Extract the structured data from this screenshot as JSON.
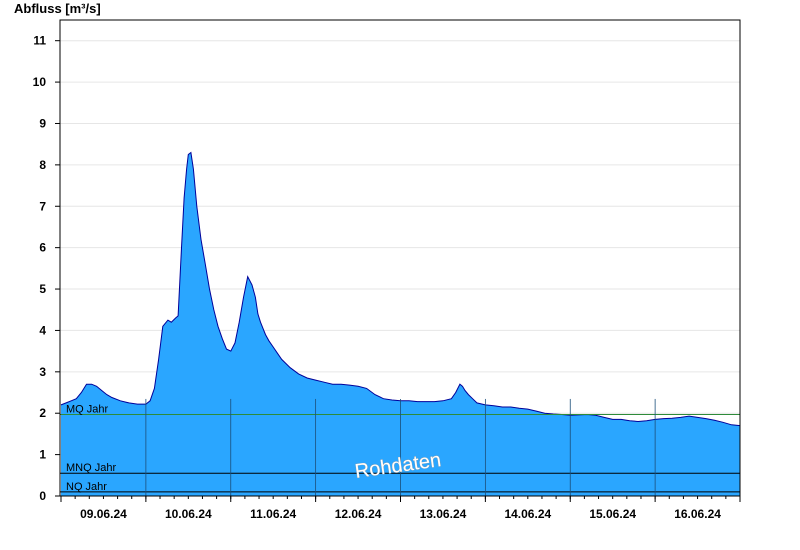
{
  "chart_data": {
    "type": "area",
    "title": "",
    "ylabel": "Abfluss [m³/s]",
    "xlabel": "",
    "ylim": [
      0,
      11.5
    ],
    "yticks": [
      "0",
      "1",
      "2",
      "3",
      "4",
      "5",
      "6",
      "7",
      "8",
      "9",
      "10",
      "11"
    ],
    "xlim": [
      0,
      8
    ],
    "xticks": [
      "09.06.24",
      "10.06.24",
      "11.06.24",
      "12.06.24",
      "13.06.24",
      "14.06.24",
      "15.06.24",
      "16.06.24"
    ],
    "grid": true,
    "colors": {
      "fill": "#2aa6ff",
      "line": "#000099",
      "mq": "#2e8b3a",
      "ref": "#000000"
    },
    "reference_lines": [
      {
        "label": "MQ Jahr",
        "value": 1.97
      },
      {
        "label": "MNQ Jahr",
        "value": 0.55
      },
      {
        "label": "NQ Jahr",
        "value": 0.1
      }
    ],
    "watermark": "Rohdaten",
    "series": [
      {
        "x": [
          0,
          0.06,
          0.12,
          0.18,
          0.24,
          0.3,
          0.36,
          0.42,
          0.48,
          0.54,
          0.6,
          0.7,
          0.8,
          0.9,
          1.0,
          1.05,
          1.1,
          1.15,
          1.2,
          1.26,
          1.3,
          1.35,
          1.38,
          1.42,
          1.45,
          1.48,
          1.5,
          1.53,
          1.56,
          1.6,
          1.65,
          1.7,
          1.75,
          1.8,
          1.85,
          1.9,
          1.95,
          2.0,
          2.05,
          2.1,
          2.15,
          2.2,
          2.25,
          2.29,
          2.32,
          2.35,
          2.38,
          2.41,
          2.45,
          2.5,
          2.55,
          2.6,
          2.7,
          2.8,
          2.9,
          3.0,
          3.1,
          3.2,
          3.3,
          3.4,
          3.5,
          3.6,
          3.7,
          3.8,
          3.9,
          4.0,
          4.1,
          4.2,
          4.3,
          4.4,
          4.5,
          4.6,
          4.65,
          4.7,
          4.73,
          4.76,
          4.8,
          4.85,
          4.9,
          5.0,
          5.1,
          5.2,
          5.3,
          5.4,
          5.5,
          5.6,
          5.7,
          5.8,
          5.9,
          6.0,
          6.1,
          6.2,
          6.3,
          6.4,
          6.5,
          6.6,
          6.7,
          6.8,
          6.9,
          7.0,
          7.1,
          7.2,
          7.3,
          7.4,
          7.5,
          7.6,
          7.7,
          7.8,
          7.9,
          8.0
        ],
        "values": [
          2.2,
          2.25,
          2.3,
          2.35,
          2.5,
          2.7,
          2.7,
          2.65,
          2.55,
          2.45,
          2.38,
          2.3,
          2.25,
          2.22,
          2.22,
          2.3,
          2.6,
          3.3,
          4.1,
          4.25,
          4.2,
          4.3,
          4.35,
          6.0,
          7.2,
          7.9,
          8.25,
          8.3,
          7.9,
          7.0,
          6.2,
          5.6,
          5.0,
          4.5,
          4.1,
          3.8,
          3.55,
          3.5,
          3.7,
          4.2,
          4.8,
          5.3,
          5.1,
          4.8,
          4.4,
          4.2,
          4.05,
          3.9,
          3.75,
          3.6,
          3.45,
          3.3,
          3.1,
          2.95,
          2.85,
          2.8,
          2.75,
          2.7,
          2.7,
          2.68,
          2.65,
          2.6,
          2.45,
          2.35,
          2.32,
          2.3,
          2.3,
          2.28,
          2.28,
          2.28,
          2.3,
          2.35,
          2.5,
          2.7,
          2.65,
          2.55,
          2.45,
          2.35,
          2.25,
          2.2,
          2.18,
          2.15,
          2.15,
          2.12,
          2.1,
          2.05,
          2.0,
          1.98,
          1.97,
          1.95,
          1.96,
          1.97,
          1.95,
          1.9,
          1.85,
          1.85,
          1.82,
          1.8,
          1.82,
          1.85,
          1.87,
          1.88,
          1.9,
          1.93,
          1.9,
          1.87,
          1.83,
          1.78,
          1.72,
          1.7
        ]
      }
    ]
  }
}
